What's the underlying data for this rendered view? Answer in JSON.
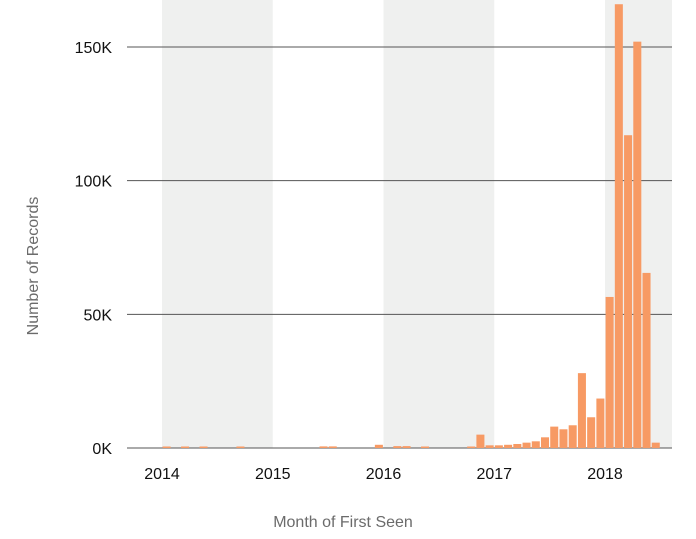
{
  "chart_data": {
    "type": "bar",
    "title": "",
    "xlabel": "Month of First Seen",
    "ylabel": "Number of Records",
    "ylim": [
      0,
      165000
    ],
    "xlim": [
      "2013-11",
      "2018-08"
    ],
    "grid": "horizontal",
    "legend": "none",
    "colors": {
      "bar": "#f79a64",
      "band": "#eff0ef",
      "gridline": "#555555"
    },
    "y_ticks": [
      {
        "value": 0,
        "label": "0K"
      },
      {
        "value": 50000,
        "label": "50K"
      },
      {
        "value": 100000,
        "label": "100K"
      },
      {
        "value": 150000,
        "label": "150K"
      }
    ],
    "x_ticks": [
      {
        "value": "2014-01",
        "label": "2014"
      },
      {
        "value": "2015-01",
        "label": "2015"
      },
      {
        "value": "2016-01",
        "label": "2016"
      },
      {
        "value": "2017-01",
        "label": "2017"
      },
      {
        "value": "2018-01",
        "label": "2018"
      }
    ],
    "shaded_years": [
      2014,
      2016,
      2018
    ],
    "bars": [
      {
        "month": "2014-01",
        "value": 300
      },
      {
        "month": "2014-03",
        "value": 400
      },
      {
        "month": "2014-05",
        "value": 300
      },
      {
        "month": "2014-09",
        "value": 300
      },
      {
        "month": "2015-06",
        "value": 600
      },
      {
        "month": "2015-07",
        "value": 600
      },
      {
        "month": "2015-12",
        "value": 1200
      },
      {
        "month": "2016-02",
        "value": 700
      },
      {
        "month": "2016-03",
        "value": 700
      },
      {
        "month": "2016-05",
        "value": 500
      },
      {
        "month": "2016-10",
        "value": 400
      },
      {
        "month": "2016-11",
        "value": 5000
      },
      {
        "month": "2016-12",
        "value": 1000
      },
      {
        "month": "2017-01",
        "value": 1000
      },
      {
        "month": "2017-02",
        "value": 1200
      },
      {
        "month": "2017-03",
        "value": 1500
      },
      {
        "month": "2017-04",
        "value": 2000
      },
      {
        "month": "2017-05",
        "value": 2500
      },
      {
        "month": "2017-06",
        "value": 4000
      },
      {
        "month": "2017-07",
        "value": 8000
      },
      {
        "month": "2017-08",
        "value": 7000
      },
      {
        "month": "2017-09",
        "value": 8500
      },
      {
        "month": "2017-10",
        "value": 28000
      },
      {
        "month": "2017-11",
        "value": 11500
      },
      {
        "month": "2017-12",
        "value": 18500
      },
      {
        "month": "2018-01",
        "value": 56500
      },
      {
        "month": "2018-02",
        "value": 166000
      },
      {
        "month": "2018-03",
        "value": 117000
      },
      {
        "month": "2018-04",
        "value": 152000
      },
      {
        "month": "2018-05",
        "value": 65500
      },
      {
        "month": "2018-06",
        "value": 2000
      }
    ]
  }
}
